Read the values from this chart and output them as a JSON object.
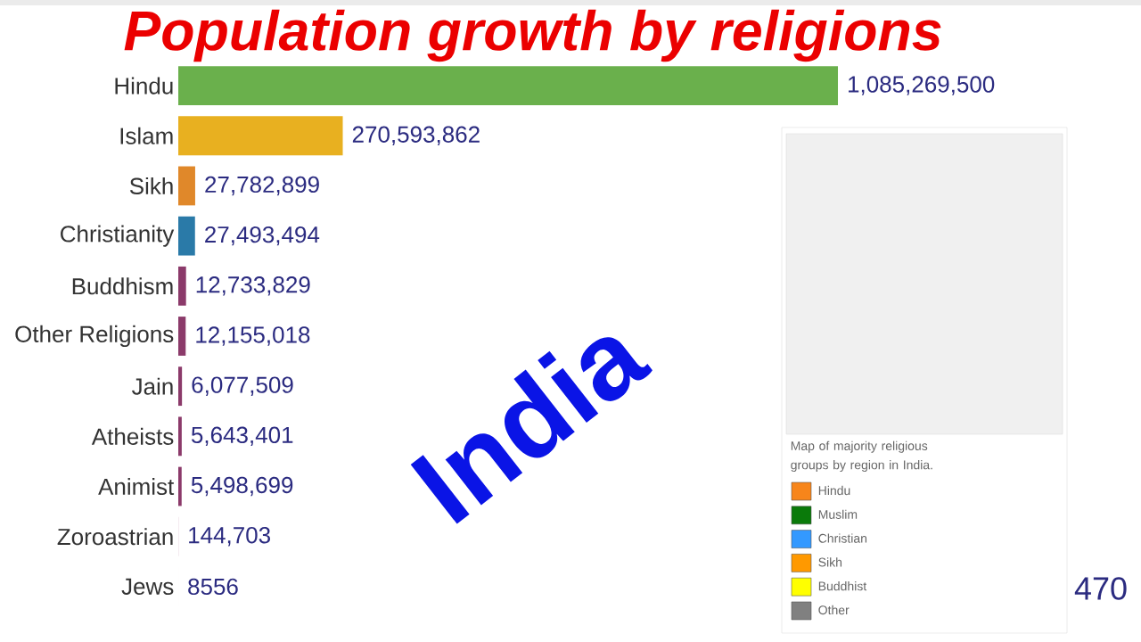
{
  "chart_data": {
    "type": "bar",
    "orientation": "horizontal",
    "title": "Population growth by religions",
    "categories": [
      "Hindu",
      "Islam",
      "Sikh",
      "Christianity",
      "Buddhism",
      "Other Religions",
      "Jain",
      "Atheists",
      "Animist",
      "Zoroastrian",
      "Jews"
    ],
    "values": [
      1085269500,
      270593862,
      27782899,
      27493494,
      12733829,
      12155018,
      6077509,
      5643401,
      5498699,
      144703,
      8556
    ],
    "value_labels": [
      "1,085,269,500",
      "270,593,862",
      "27,782,899",
      "27,493,494",
      "12,733,829",
      "12,155,018",
      "6,077,509",
      "5,643,401",
      "5,498,699",
      "144,703",
      "8556"
    ],
    "colors": [
      "#6ab04c",
      "#e8b020",
      "#e0882a",
      "#2a7aa8",
      "#8b3a6a",
      "#8b3a6a",
      "#8b3a6a",
      "#8b3a6a",
      "#8b3a6a",
      "#8b3a6a",
      "#8b3a6a"
    ],
    "annotations": [
      "India",
      "Map of majority religious groups by region in India.",
      "Hindu",
      "Muslim",
      "Christian",
      "Sikh",
      "Buddhist",
      "Other",
      "470"
    ]
  }
}
